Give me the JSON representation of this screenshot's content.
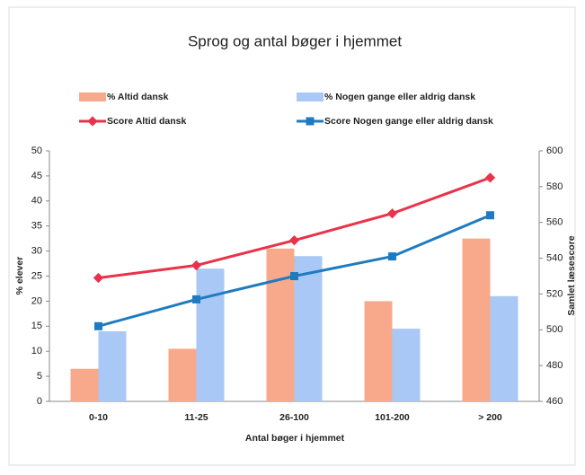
{
  "chart_data": {
    "type": "bar",
    "title": "Sprog og antal bøger i hjemmet",
    "x_label": "Antal bøger i hjemmet",
    "y_label": "% elever",
    "y2_label": "Samlet læsescore",
    "categories": [
      "0-10",
      "11-25",
      "26-100",
      "101-200",
      "> 200"
    ],
    "series": [
      {
        "name": "% Altid dansk",
        "type": "bar",
        "color": "#f9a98b",
        "values": [
          6.5,
          10.5,
          30.5,
          20,
          32.5
        ]
      },
      {
        "name": "% Nogen gange eller aldrig dansk",
        "type": "bar",
        "color": "#a9c8f5",
        "values": [
          14,
          26.5,
          29,
          14.5,
          21
        ]
      },
      {
        "name": "Score Altid dansk",
        "type": "line",
        "axis": "y2",
        "color": "#e8334a",
        "values": [
          529,
          536,
          550,
          565,
          585
        ]
      },
      {
        "name": "Score Nogen gange eller aldrig dansk",
        "type": "line",
        "axis": "y2",
        "color": "#1f7bc0",
        "values": [
          502,
          517,
          530,
          541,
          564
        ]
      }
    ],
    "ylim": [
      0,
      50
    ],
    "yticks": [
      0,
      5,
      10,
      15,
      20,
      25,
      30,
      35,
      40,
      45,
      50
    ],
    "y2lim": [
      460,
      600
    ],
    "y2ticks": [
      460,
      480,
      500,
      520,
      540,
      560,
      580,
      600
    ]
  }
}
